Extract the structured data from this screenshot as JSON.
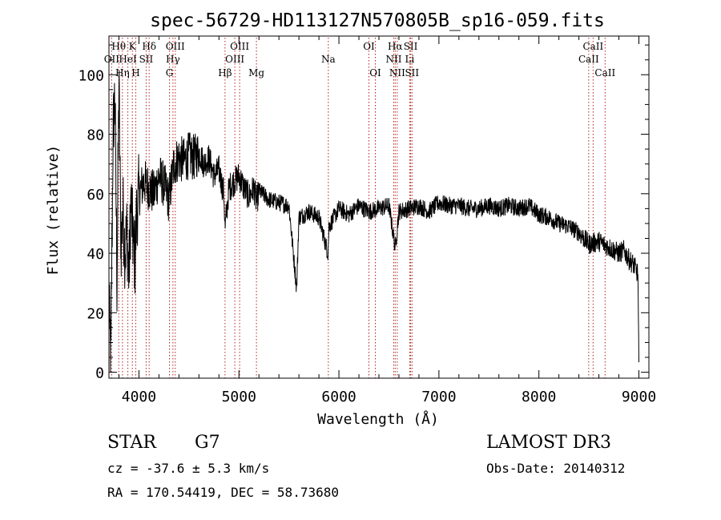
{
  "chart_data": {
    "type": "line",
    "title": "spec-56729-HD113127N570805B_sp16-059.fits",
    "xlabel": "Wavelength (Å)",
    "ylabel": "Flux (relative)",
    "xlim": [
      3700,
      9100
    ],
    "ylim": [
      -2,
      113
    ],
    "xticks": [
      4000,
      5000,
      6000,
      7000,
      8000,
      9000
    ],
    "yticks": [
      0,
      20,
      40,
      60,
      80,
      100
    ],
    "line_color": "#000000",
    "marker_color": "#b22222",
    "series": [
      {
        "name": "Flux",
        "x": [
          3700,
          3720,
          3740,
          3760,
          3780,
          3800,
          3820,
          3840,
          3860,
          3880,
          3900,
          3920,
          3940,
          3960,
          3980,
          4000,
          4050,
          4100,
          4150,
          4200,
          4250,
          4300,
          4350,
          4400,
          4450,
          4500,
          4550,
          4600,
          4650,
          4700,
          4750,
          4800,
          4850,
          4861,
          4900,
          4950,
          5000,
          5050,
          5100,
          5150,
          5175,
          5200,
          5300,
          5400,
          5500,
          5577,
          5600,
          5700,
          5800,
          5890,
          5900,
          6000,
          6100,
          6200,
          6300,
          6400,
          6500,
          6563,
          6600,
          6700,
          6800,
          6900,
          7000,
          7100,
          7200,
          7300,
          7400,
          7500,
          7600,
          7700,
          7800,
          7900,
          8000,
          8100,
          8200,
          8300,
          8400,
          8500,
          8600,
          8700,
          8800,
          8850,
          8900,
          8950,
          8990,
          9000
        ],
        "y": [
          22,
          5,
          78,
          95,
          30,
          98,
          42,
          55,
          40,
          48,
          32,
          58,
          45,
          38,
          55,
          60,
          64,
          62,
          60,
          66,
          63,
          58,
          70,
          72,
          71,
          73,
          72,
          74,
          70,
          72,
          66,
          68,
          60,
          48,
          62,
          64,
          66,
          62,
          59,
          62,
          57,
          61,
          58,
          57,
          56,
          28,
          52,
          54,
          52,
          40,
          49,
          55,
          53,
          56,
          54,
          55,
          56,
          42,
          54,
          55,
          56,
          54,
          57,
          56,
          56,
          55,
          55,
          56,
          55,
          56,
          55,
          56,
          53,
          52,
          50,
          49,
          47,
          43,
          44,
          42,
          40,
          41,
          38,
          36,
          33,
          2
        ]
      }
    ],
    "lines": [
      {
        "label": "OII",
        "x": 3727,
        "row": 2
      },
      {
        "label": "Hθ",
        "x": 3798,
        "row": 1
      },
      {
        "label": "Hη",
        "x": 3835,
        "row": 3
      },
      {
        "label": "HeI",
        "x": 3889,
        "row": 2
      },
      {
        "label": "K",
        "x": 3934,
        "row": 1
      },
      {
        "label": "H",
        "x": 3968,
        "row": 3
      },
      {
        "label": "SII",
        "x": 4072,
        "row": 2
      },
      {
        "label": "Hδ",
        "x": 4102,
        "row": 1
      },
      {
        "label": "G",
        "x": 4305,
        "row": 3
      },
      {
        "label": "Hγ",
        "x": 4340,
        "row": 2
      },
      {
        "label": "OIII",
        "x": 4363,
        "row": 1
      },
      {
        "label": "Hβ",
        "x": 4861,
        "row": 3
      },
      {
        "label": "OIII",
        "x": 4959,
        "row": 2
      },
      {
        "label": "OIII",
        "x": 5007,
        "row": 1
      },
      {
        "label": "Mg",
        "x": 5175,
        "row": 3
      },
      {
        "label": "Na",
        "x": 5894,
        "row": 2
      },
      {
        "label": "OI",
        "x": 6300,
        "row": 1
      },
      {
        "label": "OI",
        "x": 6364,
        "row": 3
      },
      {
        "label": "NII",
        "x": 6548,
        "row": 2
      },
      {
        "label": "Hα",
        "x": 6563,
        "row": 1
      },
      {
        "label": "NII",
        "x": 6583,
        "row": 3
      },
      {
        "label": "Li",
        "x": 6708,
        "row": 2
      },
      {
        "label": "SII",
        "x": 6717,
        "row": 1
      },
      {
        "label": "SII",
        "x": 6731,
        "row": 3
      },
      {
        "label": "CaII",
        "x": 8498,
        "row": 2
      },
      {
        "label": "CaII",
        "x": 8542,
        "row": 1
      },
      {
        "label": "CaII",
        "x": 8662,
        "row": 3
      }
    ],
    "annotations": {
      "class": "STAR",
      "subclass": "G7",
      "survey": "LAMOST DR3",
      "cz": "cz = -37.6 ± 5.3 km/s",
      "obs_date": "Obs-Date: 20140312",
      "coords": "RA = 170.54419, DEC =  58.73680"
    }
  }
}
